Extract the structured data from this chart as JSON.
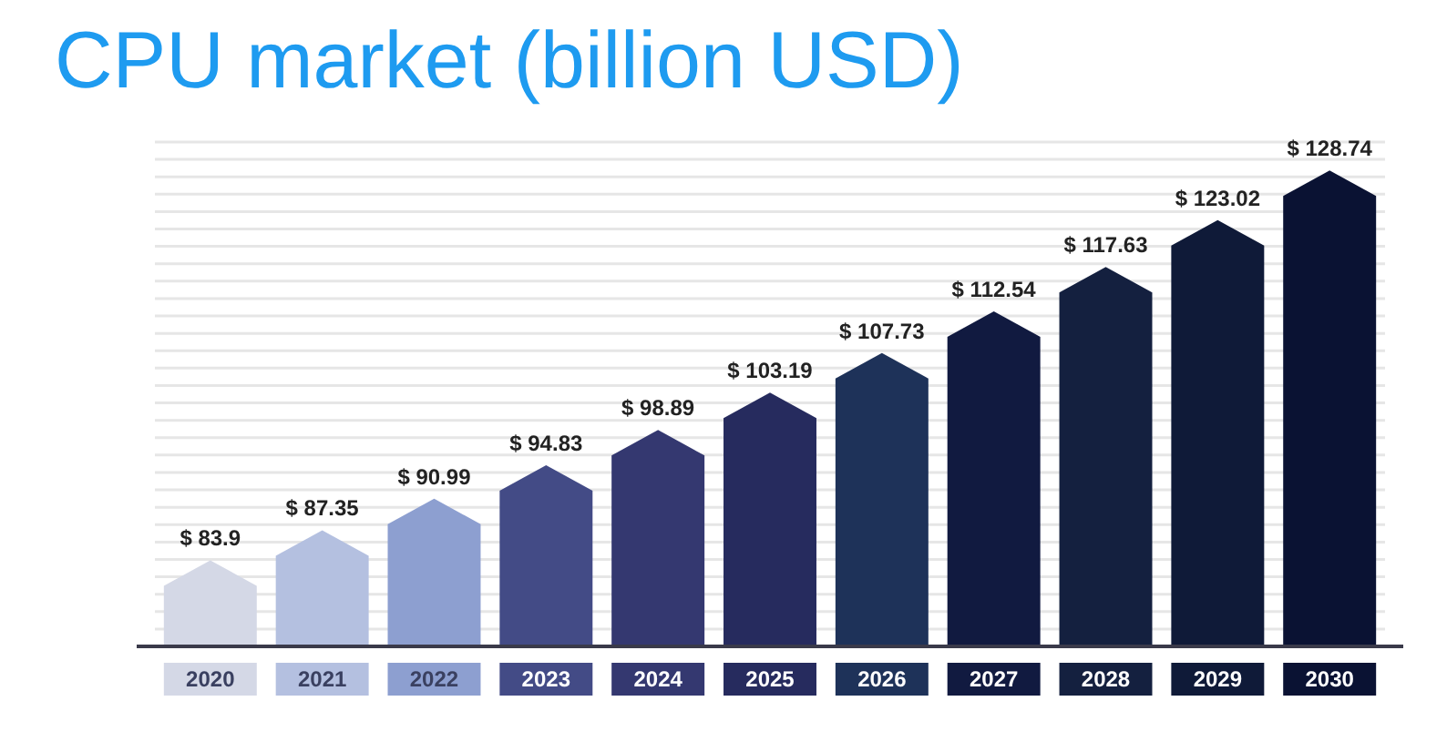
{
  "chart_data": {
    "type": "bar",
    "title": "CPU market (billion USD)",
    "categories": [
      "2020",
      "2021",
      "2022",
      "2023",
      "2024",
      "2025",
      "2026",
      "2027",
      "2028",
      "2029",
      "2030"
    ],
    "values": [
      83.9,
      87.35,
      90.99,
      94.83,
      98.89,
      103.19,
      107.73,
      112.54,
      117.63,
      123.02,
      128.74
    ],
    "value_labels": [
      "$ 83.9",
      "$ 87.35",
      "$ 90.99",
      "$ 94.83",
      "$ 98.89",
      "$ 103.19",
      "$ 107.73",
      "$ 112.54",
      "$ 117.63",
      "$ 123.02",
      "$ 128.74"
    ],
    "colors": [
      "#d4d8e6",
      "#b4c0e0",
      "#8d9fd0",
      "#434b86",
      "#343870",
      "#262b5e",
      "#1e3259",
      "#111a40",
      "#14203f",
      "#0f1a38",
      "#0a1233"
    ],
    "ylim": [
      74,
      132
    ],
    "yticks": [
      {
        "value": 76,
        "label": null
      },
      {
        "value": 78,
        "label": null
      },
      {
        "value": 80,
        "label": null
      },
      {
        "value": 82,
        "label": null
      },
      {
        "value": 84,
        "label": null
      },
      {
        "value": 86,
        "label": null
      },
      {
        "value": 88,
        "label": null
      },
      {
        "value": 90,
        "label": null
      },
      {
        "value": 92,
        "label": null
      },
      {
        "value": 94,
        "label": null
      },
      {
        "value": 96,
        "label": null
      },
      {
        "value": 98,
        "label": null
      },
      {
        "value": 100,
        "label": null
      },
      {
        "value": 102,
        "label": null
      },
      {
        "value": 104,
        "label": null
      },
      {
        "value": 106,
        "label": null
      },
      {
        "value": 108,
        "label": null
      },
      {
        "value": 110,
        "label": null
      },
      {
        "value": 112,
        "label": null
      },
      {
        "value": 114,
        "label": null
      },
      {
        "value": 116,
        "label": null
      },
      {
        "value": 118,
        "label": null
      },
      {
        "value": 120,
        "label": null
      },
      {
        "value": 122,
        "label": null
      },
      {
        "value": 124,
        "label": null
      },
      {
        "value": 126,
        "label": null
      },
      {
        "value": 128,
        "label": null
      },
      {
        "value": 130,
        "label": null
      },
      {
        "value": 132,
        "label": null
      }
    ],
    "grid": "y",
    "tick_labels": "x"
  }
}
